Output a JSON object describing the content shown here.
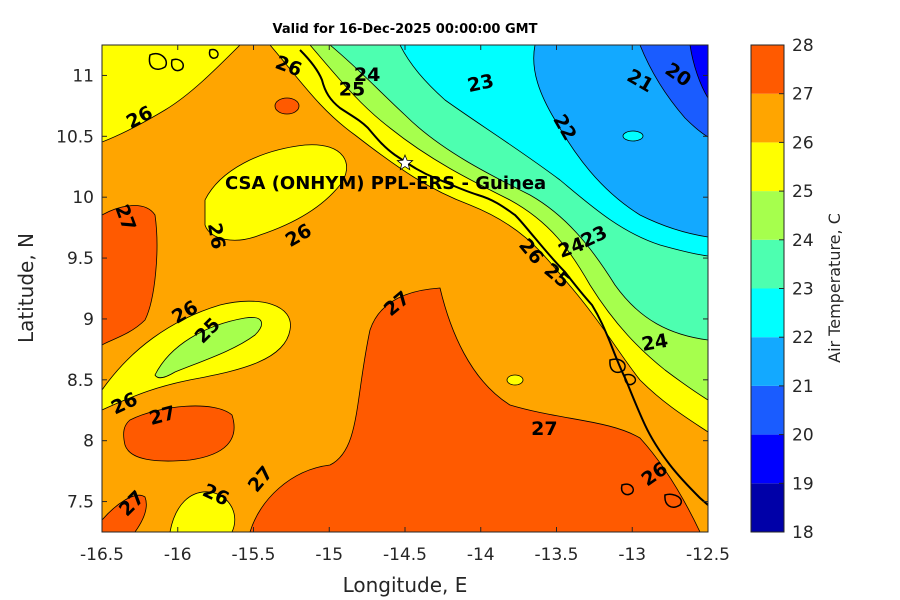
{
  "title": "Valid for 16-Dec-2025 00:00:00 GMT",
  "station": {
    "label": "CSA (ONHYM) PPL-ERS  - Guinea",
    "lon": -14.5,
    "lat": 10.28
  },
  "chart_data": {
    "type": "heatmap",
    "xlabel": "Longitude, E",
    "ylabel": "Latitude, N",
    "xlim": [
      -16.5,
      -12.5
    ],
    "ylim": [
      7.25,
      11.25
    ],
    "xticks": [
      "-16.5",
      "-16",
      "-15.5",
      "-15",
      "-14.5",
      "-14",
      "-13.5",
      "-13",
      "-12.5"
    ],
    "yticks": [
      "7.5",
      "8",
      "8.5",
      "9",
      "9.5",
      "10",
      "10.5",
      "11"
    ],
    "colorbar": {
      "label": "Air Temperature, C",
      "levels": [
        "18",
        "19",
        "20",
        "21",
        "22",
        "23",
        "24",
        "25",
        "26",
        "27",
        "28"
      ],
      "colors": [
        "#0000a8",
        "#0000ff",
        "#1a5cff",
        "#13a9ff",
        "#00ffff",
        "#4dffb0",
        "#a6ff4d",
        "#ffff00",
        "#ffa500",
        "#ff5a00",
        "#ff0000"
      ]
    },
    "contour_labels": [
      {
        "text": "26",
        "lon": -16.25,
        "lat": 10.65,
        "rot": -28
      },
      {
        "text": "26",
        "lon": -15.27,
        "lat": 11.07,
        "rot": 20
      },
      {
        "text": "24",
        "lon": -14.75,
        "lat": 11.0,
        "rot": 0
      },
      {
        "text": "25",
        "lon": -14.85,
        "lat": 10.88,
        "rot": 0
      },
      {
        "text": "23",
        "lon": -14.0,
        "lat": 10.93,
        "rot": -12
      },
      {
        "text": "22",
        "lon": -13.45,
        "lat": 10.57,
        "rot": 60
      },
      {
        "text": "21",
        "lon": -12.95,
        "lat": 10.95,
        "rot": 30
      },
      {
        "text": "20",
        "lon": -12.7,
        "lat": 11.0,
        "rot": 35
      },
      {
        "text": "27",
        "lon": -16.35,
        "lat": 9.83,
        "rot": 70
      },
      {
        "text": "26",
        "lon": -15.75,
        "lat": 9.68,
        "rot": 80
      },
      {
        "text": "26",
        "lon": -15.2,
        "lat": 9.68,
        "rot": -30
      },
      {
        "text": "23",
        "lon": -13.25,
        "lat": 9.67,
        "rot": -25
      },
      {
        "text": "24",
        "lon": -13.4,
        "lat": 9.58,
        "rot": -20
      },
      {
        "text": "26",
        "lon": -13.67,
        "lat": 9.55,
        "rot": 50
      },
      {
        "text": "25",
        "lon": -13.5,
        "lat": 9.35,
        "rot": 40
      },
      {
        "text": "26",
        "lon": -15.95,
        "lat": 9.05,
        "rot": -30
      },
      {
        "text": "25",
        "lon": -15.8,
        "lat": 8.9,
        "rot": -45
      },
      {
        "text": "27",
        "lon": -14.55,
        "lat": 9.12,
        "rot": -40
      },
      {
        "text": "24",
        "lon": -12.85,
        "lat": 8.8,
        "rot": -10
      },
      {
        "text": "26",
        "lon": -16.35,
        "lat": 8.3,
        "rot": -25
      },
      {
        "text": "27",
        "lon": -16.1,
        "lat": 8.2,
        "rot": -15
      },
      {
        "text": "27",
        "lon": -13.58,
        "lat": 8.09,
        "rot": 0
      },
      {
        "text": "27",
        "lon": -15.45,
        "lat": 7.68,
        "rot": -50
      },
      {
        "text": "26",
        "lon": -15.75,
        "lat": 7.55,
        "rot": 25
      },
      {
        "text": "27",
        "lon": -16.3,
        "lat": 7.48,
        "rot": -45
      },
      {
        "text": "26",
        "lon": -12.85,
        "lat": 7.72,
        "rot": -35
      }
    ]
  }
}
